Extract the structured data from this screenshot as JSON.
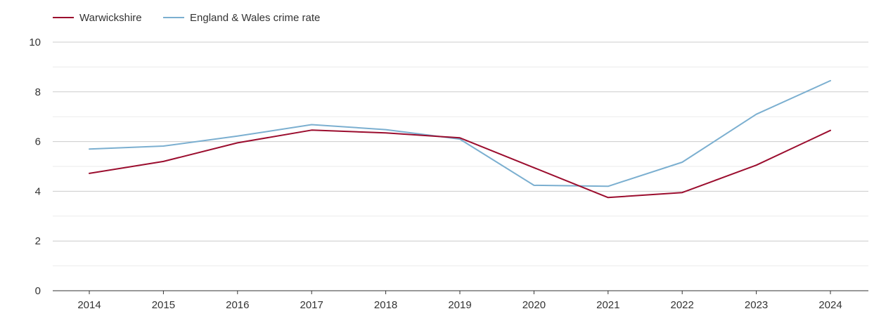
{
  "chart_data": {
    "type": "line",
    "title": "",
    "xlabel": "",
    "ylabel": "",
    "categories": [
      "2014",
      "2015",
      "2016",
      "2017",
      "2018",
      "2019",
      "2020",
      "2021",
      "2022",
      "2023",
      "2024"
    ],
    "ylim": [
      0,
      10
    ],
    "y_ticks": [
      "0",
      "2",
      "4",
      "6",
      "8",
      "10"
    ],
    "grid": true,
    "legend_position": "top-left",
    "series": [
      {
        "name": "Warwickshire",
        "color": "#9b0d2e",
        "values": [
          4.72,
          5.2,
          5.95,
          6.46,
          6.35,
          6.15,
          4.95,
          3.75,
          3.95,
          5.05,
          6.45
        ]
      },
      {
        "name": "England & Wales crime rate",
        "color": "#7bafd0",
        "values": [
          5.7,
          5.82,
          6.22,
          6.68,
          6.48,
          6.1,
          4.24,
          4.2,
          5.17,
          7.1,
          8.45
        ]
      }
    ]
  }
}
